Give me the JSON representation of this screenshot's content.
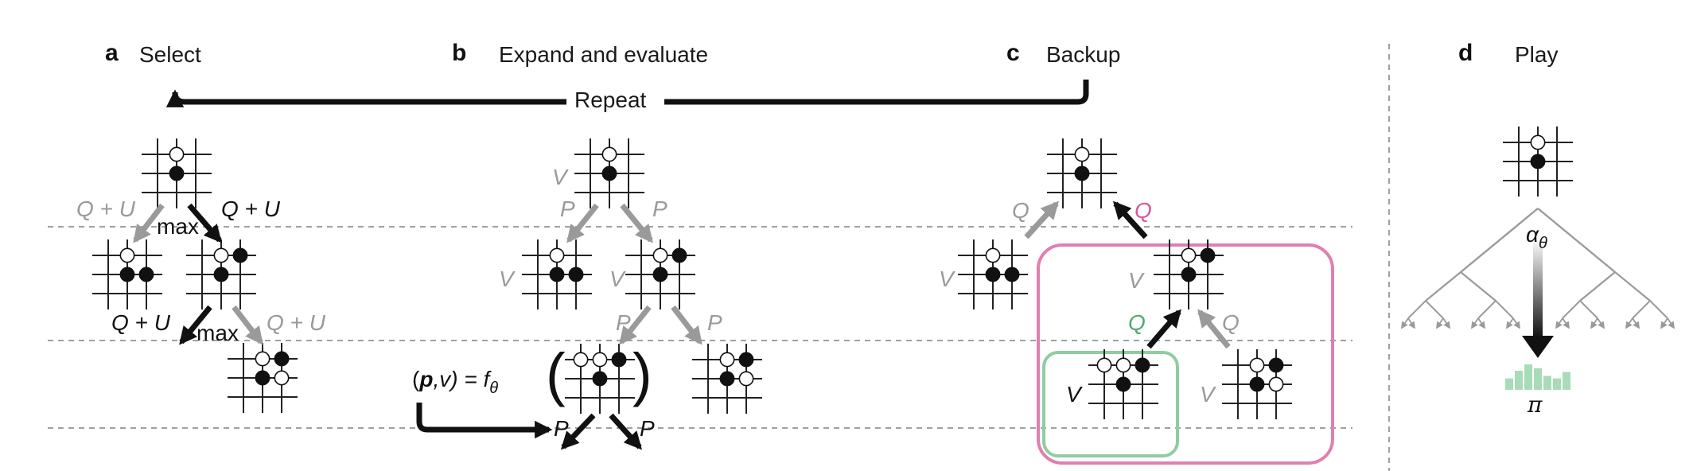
{
  "panels": {
    "a": {
      "letter": "a",
      "title": "Select"
    },
    "b": {
      "letter": "b",
      "title": "Expand and evaluate"
    },
    "c": {
      "letter": "c",
      "title": "Backup"
    },
    "d": {
      "letter": "d",
      "title": "Play"
    }
  },
  "repeat_label": "Repeat",
  "labels": {
    "q_plus_u": "Q + U",
    "max": "max",
    "p": "P",
    "v": "V",
    "q": "Q",
    "f_lhs": "(",
    "f_p": "p",
    "f_comma_v": ",v) = f",
    "theta": "θ",
    "alpha": "α",
    "pi": "π",
    "paren_open": "(",
    "paren_close": ")"
  },
  "colors": {
    "black_arrow": "#111111",
    "gray_arrow": "#9a9a9a",
    "highlight_pink": "#e07fb0",
    "highlight_green": "#8fcca2",
    "policy_bars": "#a8dcb8",
    "dashed_line": "#a0a0a0"
  },
  "policy_distribution": [
    0.45,
    0.75,
    1.0,
    0.85,
    0.55,
    0.45,
    0.7
  ]
}
